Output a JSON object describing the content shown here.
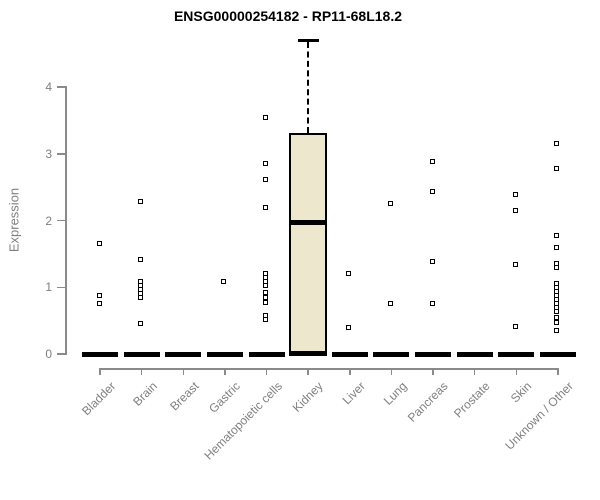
{
  "title": "ENSG00000254182 - RP11-68L18.2",
  "chart_data": {
    "type": "boxplot",
    "title": "ENSG00000254182 - RP11-68L18.2",
    "xlabel": "",
    "ylabel": "Expression",
    "ylim": [
      0,
      4.7
    ],
    "yticks": [
      0,
      1,
      2,
      3,
      4
    ],
    "grid": false,
    "legend": "none",
    "categories": [
      "Bladder",
      "Brain",
      "Breast",
      "Gastric",
      "Hematopoietic cells",
      "Kidney",
      "Liver",
      "Lung",
      "Pancreas",
      "Prostate",
      "Skin",
      "Unknown / Other"
    ],
    "series": [
      {
        "category": "Bladder",
        "median": 0,
        "points": [
          1.65,
          0.88,
          0.76
        ]
      },
      {
        "category": "Brain",
        "median": 0,
        "points": [
          2.29,
          1.42,
          1.08,
          1.02,
          0.96,
          0.9,
          0.84,
          0.46
        ]
      },
      {
        "category": "Breast",
        "median": 0,
        "points": []
      },
      {
        "category": "Gastric",
        "median": 0,
        "points": [
          1.08
        ]
      },
      {
        "category": "Hematopoietic cells",
        "median": 0,
        "points": [
          3.54,
          2.86,
          2.62,
          2.19,
          1.21,
          1.14,
          1.08,
          1.02,
          0.92,
          0.84,
          0.77,
          0.58,
          0.52
        ]
      },
      {
        "category": "Kidney",
        "median": 1.97,
        "box": {
          "q1": 0,
          "q3": 3.31,
          "whisker_low": 0,
          "whisker_high": 4.7
        },
        "points": []
      },
      {
        "category": "Liver",
        "median": 0,
        "points": [
          1.2,
          0.4
        ]
      },
      {
        "category": "Lung",
        "median": 0,
        "points": [
          2.25,
          0.76
        ]
      },
      {
        "category": "Pancreas",
        "median": 0,
        "points": [
          2.88,
          2.43,
          1.38,
          0.76
        ]
      },
      {
        "category": "Prostate",
        "median": 0,
        "points": []
      },
      {
        "category": "Skin",
        "median": 0,
        "points": [
          2.39,
          2.15,
          1.34,
          0.41
        ]
      },
      {
        "category": "Unknown / Other",
        "median": 0,
        "points": [
          3.15,
          2.78,
          1.78,
          1.6,
          1.36,
          1.3,
          1.05,
          0.99,
          0.93,
          0.87,
          0.81,
          0.75,
          0.69,
          0.63,
          0.54,
          0.47,
          0.35
        ]
      }
    ],
    "colors": {
      "box_fill": "#EDE8CD",
      "box_border": "#000000",
      "median": "#000000",
      "point": "#000000",
      "axis": "#8A8A8A",
      "tick_label": "#7F7F7F",
      "title": "#000000",
      "background": "#FFFFFF"
    }
  }
}
